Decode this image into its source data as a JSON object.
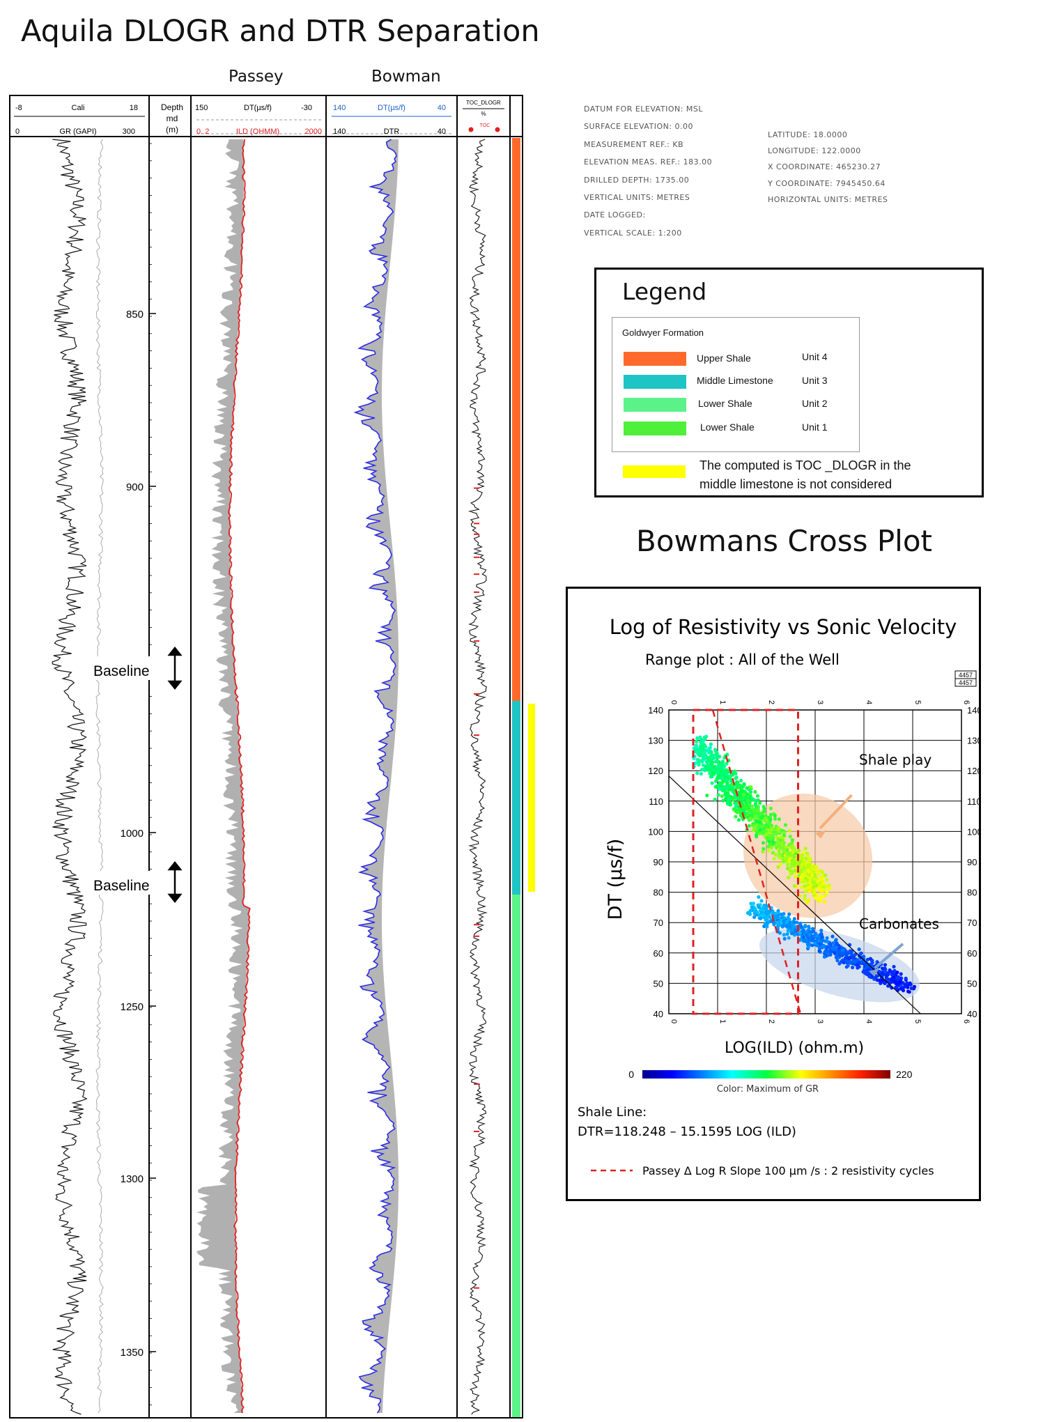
{
  "title": "Aquila DLOGR and DTR Separation",
  "col_headers": {
    "passey": "Passey",
    "bowman": "Bowman"
  },
  "tracks": {
    "gr": {
      "cali_min": "-8",
      "cali_name": "Cali",
      "cali_max": "18",
      "gr_min": "0",
      "gr_name": "GR (GAPI)",
      "gr_max": "300"
    },
    "depth": {
      "l1": "Depth",
      "l2": "md",
      "l3": "(m)"
    },
    "passey": {
      "dt_min": "150",
      "dt_name": "DT(µs/f)",
      "dt_max": "-30",
      "ild_min": "0. 2",
      "ild_name": "ILD (OHMM)",
      "ild_max": "2000"
    },
    "bowman": {
      "dt_min": "140",
      "dt_name": "DT(µs/f)",
      "dt_max": "40",
      "dtr_min": "140",
      "dtr_name": "DTR",
      "dtr_max": "40"
    },
    "toc": {
      "name": "TOC_DLOGR",
      "unit": "%",
      "sub": "TOC"
    }
  },
  "depth_ticks": [
    "850",
    "900",
    "1000",
    "1250",
    "1300",
    "1350"
  ],
  "baseline_labels": [
    "Baseline",
    "Baseline"
  ],
  "well_info": {
    "left": [
      "DATUM FOR ELEVATION: MSL",
      "SURFACE ELEVATION: 0.00",
      "MEASUREMENT REF.: KB",
      "ELEVATION MEAS. REF.: 183.00",
      "DRILLED DEPTH: 1735.00",
      "VERTICAL UNITS: METRES",
      "DATE LOGGED:",
      "VERTICAL SCALE: 1:200"
    ],
    "right": [
      "LATITUDE: 18.0000",
      "LONGITUDE: 122.0000",
      "X COORDINATE: 465230.27",
      "Y COORDINATE: 7945450.64",
      "HORIZONTAL UNITS: METRES"
    ]
  },
  "legend": {
    "title": "Legend",
    "formation": "Goldwyer Formation",
    "items": [
      {
        "name": "Upper Shale",
        "unit": "Unit 4",
        "color": "#ff6a2c"
      },
      {
        "name": "Middle Limestone",
        "unit": "Unit 3",
        "color": "#1fc4c4"
      },
      {
        "name": "Lower Shale",
        "unit": "Unit 2",
        "color": "#5cf28a"
      },
      {
        "name": "Lower Shale",
        "unit": "Unit 1",
        "color": "#4ef03a"
      }
    ],
    "note_line1": "The computed is TOC _DLOGR in the",
    "note_line2": "middle limestone is not considered",
    "note_color": "#ffff00"
  },
  "crossplot_title": "Bowmans Cross Plot",
  "chart_data": {
    "type": "scatter",
    "title": "Log of Resistivity vs Sonic Velocity",
    "subtitle": "Range plot : All of the Well",
    "xlabel": "LOG(ILD)  (ohm.m)",
    "ylabel": "DT (µs/f)",
    "xlim": [
      0,
      6
    ],
    "ylim": [
      40,
      140
    ],
    "x_ticks": [
      "0",
      "1",
      "2",
      "3",
      "4",
      "5",
      "6"
    ],
    "y_ticks": [
      "40",
      "50",
      "60",
      "70",
      "80",
      "90",
      "100",
      "110",
      "120",
      "130",
      "140"
    ],
    "shale_line": {
      "intercept": 118.248,
      "slope": -15.1595
    },
    "annotations": [
      "Shale play",
      "Carbonates"
    ],
    "passey_box": {
      "x": [
        0.5,
        2.65
      ],
      "y": [
        40,
        140
      ]
    },
    "passey_slope": {
      "x": [
        0.9,
        2.7
      ],
      "y": [
        140,
        40
      ]
    },
    "colorbar": {
      "min": "0",
      "max": "220",
      "label": "Color: Maximum of GR"
    },
    "counter": "4457",
    "clusters": [
      {
        "name": "upper-shale",
        "cx": 1.7,
        "cy": 100,
        "sx": 0.6,
        "sy": 10
      },
      {
        "name": "carbonates",
        "cx": 3.2,
        "cy": 60,
        "sx": 0.7,
        "sy": 5
      }
    ]
  },
  "shale_line_text": {
    "l1": "Shale Line:",
    "l2": "DTR=118.248 – 15.1595 LOG (ILD)"
  },
  "passey_note": "Passey Δ Log R Slope  100 µm /s : 2 resistivity cycles"
}
